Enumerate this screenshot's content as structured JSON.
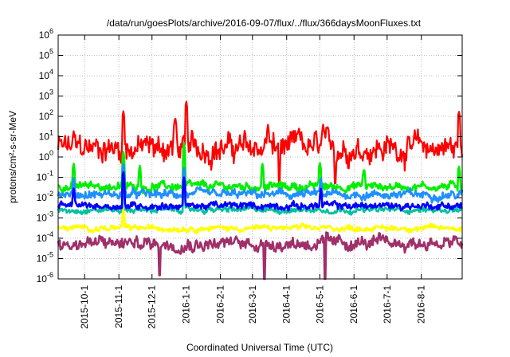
{
  "chart_data": {
    "type": "line",
    "title": "/data/run/goesPlots/archive/2016-09-07/flux/../flux/366daysMoonFluxes.txt",
    "xlabel": "Coordinated Universal Time (UTC)",
    "ylabel": "protons/cm²-s-sr-MeV",
    "yscale": "log",
    "ylim": [
      1e-06,
      1000000.0
    ],
    "xlim": [
      "2015-09-07",
      "2016-09-07"
    ],
    "grid": true,
    "ytick_labels": [
      {
        "base": "10",
        "exp": "-6"
      },
      {
        "base": "10",
        "exp": "-5"
      },
      {
        "base": "10",
        "exp": "-4"
      },
      {
        "base": "10",
        "exp": "-3"
      },
      {
        "base": "10",
        "exp": "-2"
      },
      {
        "base": "10",
        "exp": "-1"
      },
      {
        "base": "10",
        "exp": "0"
      },
      {
        "base": "10",
        "exp": "1"
      },
      {
        "base": "10",
        "exp": "2"
      },
      {
        "base": "10",
        "exp": "3"
      },
      {
        "base": "10",
        "exp": "4"
      },
      {
        "base": "10",
        "exp": "5"
      },
      {
        "base": "10",
        "exp": "6"
      }
    ],
    "xtick_labels": [
      "2015-10-1",
      "2015-11-1",
      "2015-12-1",
      "2016-1-1",
      "2016-2-1",
      "2016-3-1",
      "2016-4-1",
      "2016-5-1",
      "2016-6-1",
      "2016-7-1",
      "2016-8-1"
    ],
    "series": [
      {
        "color": "#ff0000",
        "baseline_log10": 0.45,
        "noise_log10": 0.55,
        "spikes": [
          {
            "x": "2015-09-21",
            "y": 20
          },
          {
            "x": "2015-11-05",
            "y": 200
          },
          {
            "x": "2015-12-22",
            "y": 100
          },
          {
            "x": "2016-01-01",
            "y": 600
          },
          {
            "x": "2016-03-15",
            "y": 40
          },
          {
            "x": "2016-04-12",
            "y": 30
          },
          {
            "x": "2016-05-04",
            "y": 40
          },
          {
            "x": "2016-09-04",
            "y": 200
          }
        ],
        "dips": [
          {
            "x": "2016-03-25",
            "y": 0.05
          },
          {
            "x": "2016-05-15",
            "y": 0.05
          }
        ]
      },
      {
        "color": "#00ee00",
        "baseline_log10": -1.45,
        "noise_log10": 0.18,
        "spikes": [
          {
            "x": "2015-09-21",
            "y": 0.5
          },
          {
            "x": "2015-11-05",
            "y": 2
          },
          {
            "x": "2015-11-20",
            "y": 0.4
          },
          {
            "x": "2015-12-30",
            "y": 5
          },
          {
            "x": "2016-03-10",
            "y": 0.5
          },
          {
            "x": "2016-05-01",
            "y": 0.6
          },
          {
            "x": "2016-06-10",
            "y": 0.3
          },
          {
            "x": "2016-09-04",
            "y": 0.4
          }
        ],
        "dips": []
      },
      {
        "color": "#1e90ff",
        "baseline_log10": -1.85,
        "noise_log10": 0.18,
        "spikes": [
          {
            "x": "2015-09-21",
            "y": 0.1
          },
          {
            "x": "2015-11-05",
            "y": 0.5
          },
          {
            "x": "2015-12-30",
            "y": 0.3
          },
          {
            "x": "2016-05-02",
            "y": 0.1
          }
        ],
        "dips": []
      },
      {
        "color": "#00c0a0",
        "baseline_log10": -2.6,
        "noise_log10": 0.12,
        "spikes": [
          {
            "x": "2015-11-05",
            "y": 0.05
          },
          {
            "x": "2015-12-30",
            "y": 0.03
          }
        ],
        "dips": []
      },
      {
        "color": "#0000ff",
        "baseline_log10": -2.4,
        "noise_log10": 0.15,
        "spikes": [
          {
            "x": "2015-09-21",
            "y": 0.03
          },
          {
            "x": "2015-11-05",
            "y": 0.2
          },
          {
            "x": "2015-12-30",
            "y": 0.1
          },
          {
            "x": "2016-05-02",
            "y": 0.03
          }
        ],
        "dips": []
      },
      {
        "color": "#ffff00",
        "baseline_log10": -3.5,
        "noise_log10": 0.12,
        "spikes": [
          {
            "x": "2015-11-05",
            "y": 0.003
          }
        ],
        "dips": []
      },
      {
        "color": "#a0306a",
        "baseline_log10": -4.25,
        "noise_log10": 0.28,
        "spikes": [],
        "dips": [
          {
            "x": "2015-12-08",
            "y": 1.5e-06
          },
          {
            "x": "2016-03-12",
            "y": 1e-06
          },
          {
            "x": "2016-05-06",
            "y": 1e-06
          }
        ]
      }
    ]
  }
}
